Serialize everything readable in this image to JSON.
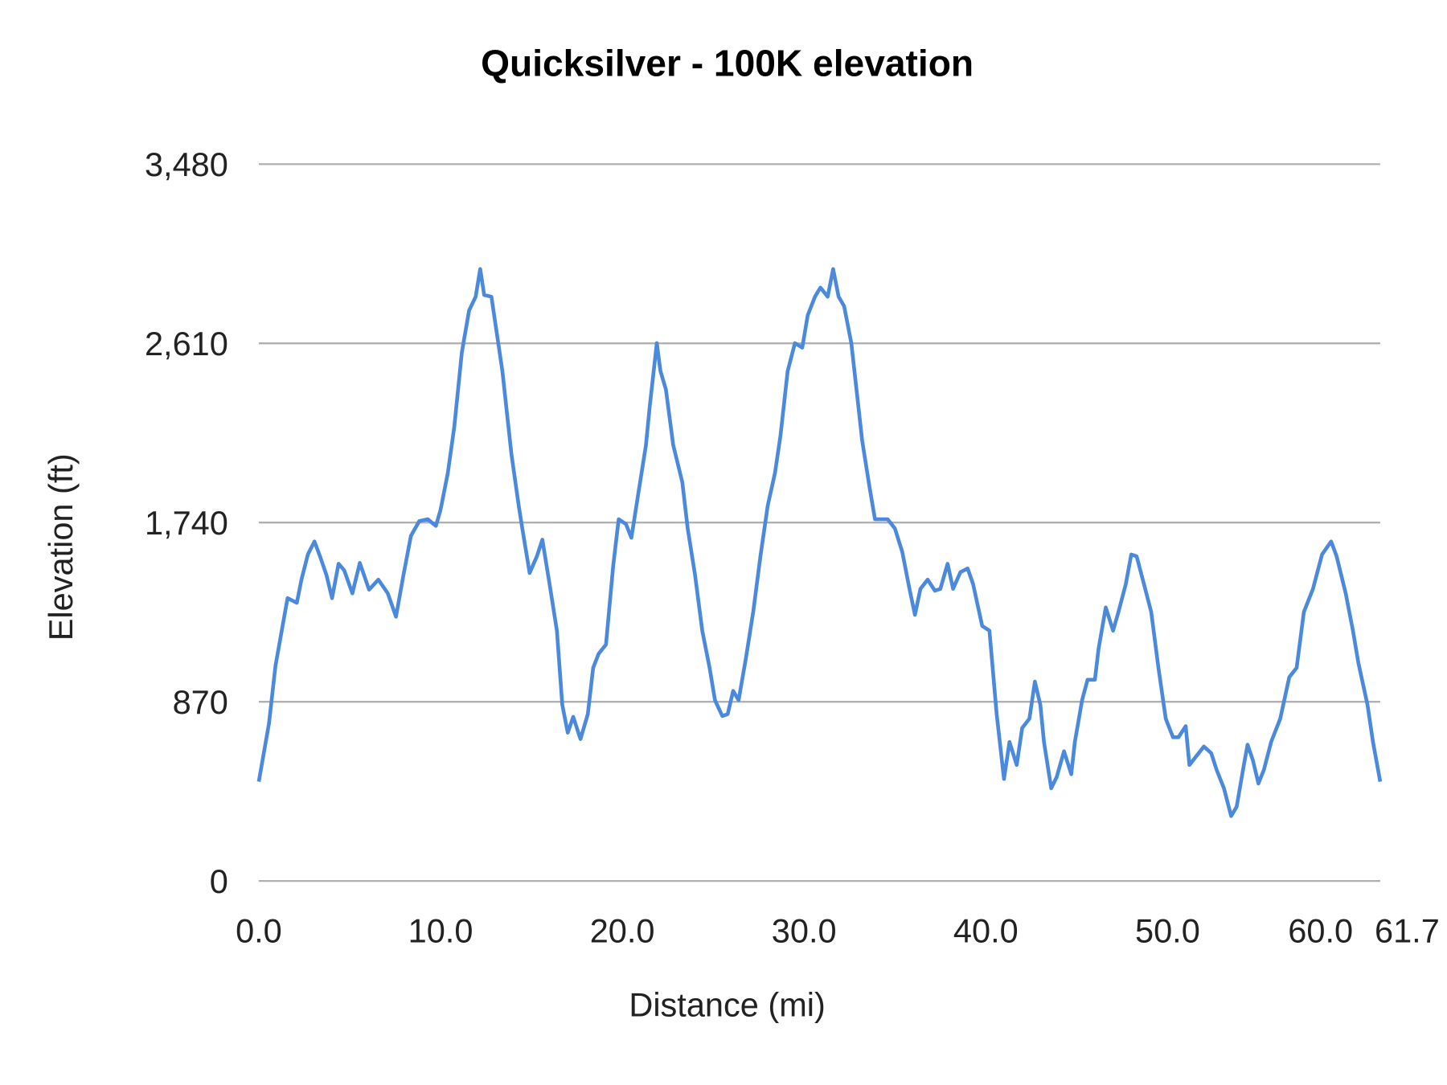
{
  "chart_data": {
    "type": "line",
    "title": "Quicksilver - 100K elevation",
    "xlabel": "Distance (mi)",
    "ylabel": "Elevation (ft)",
    "xlim": [
      0,
      61.7
    ],
    "ylim": [
      0,
      3480
    ],
    "x_ticks": [
      "0.0",
      "10.0",
      "20.0",
      "30.0",
      "40.0",
      "50.0",
      "60.0",
      "61.7"
    ],
    "x_tick_values": [
      0,
      10,
      20,
      30,
      40,
      50,
      60,
      61.7
    ],
    "y_ticks": [
      "0",
      "870",
      "1,740",
      "2,610",
      "3,480"
    ],
    "y_tick_values": [
      0,
      870,
      1740,
      2610,
      3480
    ],
    "grid": true,
    "legend": "none",
    "line_color": "#4a89dc",
    "series": [
      {
        "x": [
          0,
          0.56,
          0.92,
          1.58,
          2.09,
          2.35,
          2.7,
          3.06,
          3.37,
          3.72,
          4.03,
          4.39,
          4.7,
          5.15,
          5.56,
          6.07,
          6.58,
          7.1,
          7.55,
          7.96,
          8.37,
          8.83,
          9.3,
          9.74,
          10,
          10.4,
          10.76,
          11.17,
          11.57,
          11.93,
          12.18,
          12.4,
          12.8,
          13.1,
          13.4,
          13.9,
          14.3,
          14.5,
          14.9,
          15.3,
          15.6,
          16.0,
          16.4,
          16.7,
          17.0,
          17.3,
          17.7,
          18.1,
          18.4,
          18.7,
          19.1,
          19.5,
          19.8,
          20.2,
          20.5,
          20.9,
          21.3,
          21.5,
          21.9,
          22.1,
          22.4,
          22.8,
          23.3,
          23.6,
          24.0,
          24.4,
          24.8,
          25.1,
          25.5,
          25.8,
          26.1,
          26.4,
          26.8,
          27.2,
          27.6,
          28.0,
          28.4,
          28.7,
          29.1,
          29.5,
          29.9,
          30.2,
          30.6,
          30.9,
          31.3,
          31.6,
          31.9,
          32.2,
          32.6,
          33.0,
          33.2,
          33.6,
          33.9,
          34.3,
          34.6,
          35.0,
          35.4,
          35.8,
          36.1,
          36.4,
          36.8,
          37.2,
          37.5,
          37.9,
          38.2,
          38.6,
          39.0,
          39.3,
          39.8,
          40.2,
          40.6,
          41.0,
          41.3,
          41.7,
          42.0,
          42.4,
          42.7,
          43.0,
          43.2,
          43.6,
          43.9,
          44.3,
          44.7,
          44.9,
          45.3,
          45.6,
          46.0,
          46.2,
          46.6,
          47.0,
          47.3,
          47.7,
          48.0,
          48.3,
          48.7,
          49.1,
          49.5,
          49.9,
          50.3,
          50.6,
          51.0,
          51.2,
          51.6,
          52.0,
          52.4,
          52.7,
          53.1,
          53.5,
          53.8,
          54.2,
          54.4,
          54.7,
          55.0,
          55.3,
          55.7,
          56.2,
          56.7,
          57.1,
          57.5,
          58.0,
          58.5,
          59.0,
          59.3,
          59.8,
          60.2,
          60.5,
          61.0,
          61.3,
          61.7
        ],
        "y": [
          482,
          765,
          1045,
          1373,
          1350,
          1463,
          1585,
          1648,
          1576,
          1486,
          1373,
          1540,
          1508,
          1396,
          1544,
          1414,
          1463,
          1396,
          1283,
          1486,
          1675,
          1747,
          1756,
          1724,
          1801,
          1981,
          2206,
          2566,
          2769,
          2836,
          2971,
          2845,
          2836,
          2656,
          2476,
          2071,
          1823,
          1711,
          1495,
          1576,
          1657,
          1441,
          1215,
          855,
          720,
          797,
          689,
          810,
          1035,
          1103,
          1148,
          1531,
          1756,
          1733,
          1666,
          1891,
          2116,
          2296,
          2611,
          2476,
          2386,
          2116,
          1936,
          1711,
          1486,
          1215,
          1035,
          878,
          801,
          810,
          923,
          878,
          1080,
          1305,
          1576,
          1823,
          1981,
          2161,
          2476,
          2611,
          2589,
          2746,
          2836,
          2881,
          2836,
          2971,
          2836,
          2791,
          2611,
          2296,
          2138,
          1913,
          1756,
          1756,
          1756,
          1711,
          1598,
          1418,
          1292,
          1418,
          1463,
          1409,
          1418,
          1540,
          1418,
          1499,
          1517,
          1441,
          1238,
          1215,
          810,
          495,
          675,
          563,
          743,
          788,
          968,
          855,
          675,
          450,
          504,
          630,
          518,
          675,
          878,
          977,
          977,
          1125,
          1328,
          1215,
          1306,
          1441,
          1585,
          1576,
          1441,
          1306,
          1035,
          788,
          698,
          698,
          752,
          563,
          608,
          653,
          621,
          540,
          450,
          315,
          360,
          563,
          662,
          585,
          473,
          540,
          675,
          788,
          990,
          1035,
          1306,
          1418,
          1585,
          1648,
          1576,
          1396,
          1215,
          1058,
          855,
          675,
          482
        ]
      }
    ]
  }
}
